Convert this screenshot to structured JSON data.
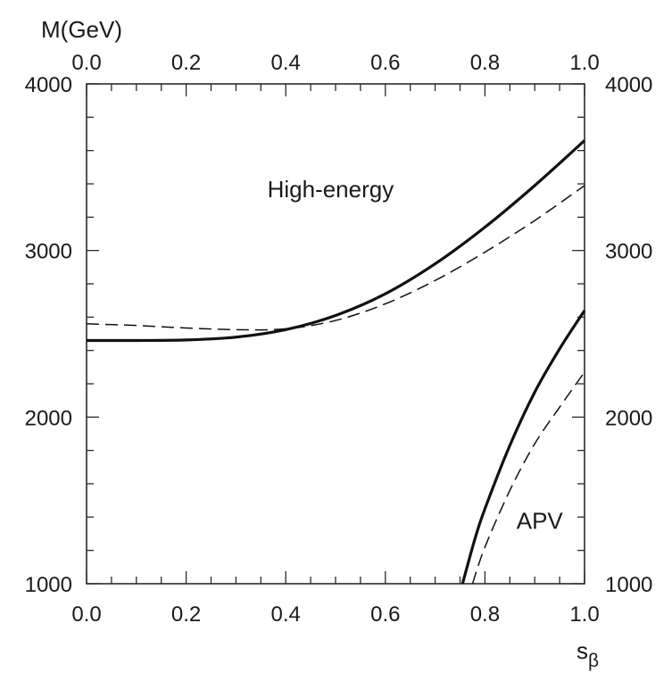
{
  "chart_data": {
    "type": "line",
    "ylabel": "M(GeV)",
    "xlabel": "s",
    "xlabel_subscript": "β",
    "xlim": [
      0.0,
      1.0
    ],
    "ylim": [
      1000,
      4000
    ],
    "x_ticks": [
      "0.0",
      "0.2",
      "0.4",
      "0.6",
      "0.8",
      "1.0"
    ],
    "y_ticks": [
      "1000",
      "2000",
      "3000",
      "4000"
    ],
    "grid": false,
    "annotations": [
      {
        "text": "High-energy",
        "x": 0.49,
        "y": 3320
      },
      {
        "text": "APV",
        "x": 0.91,
        "y": 1330
      }
    ],
    "series": [
      {
        "style": "solid",
        "points": [
          [
            0.0,
            2460
          ],
          [
            0.1,
            2460
          ],
          [
            0.2,
            2463
          ],
          [
            0.3,
            2480
          ],
          [
            0.4,
            2525
          ],
          [
            0.5,
            2610
          ],
          [
            0.6,
            2740
          ],
          [
            0.7,
            2920
          ],
          [
            0.8,
            3140
          ],
          [
            0.9,
            3390
          ],
          [
            1.0,
            3660
          ]
        ]
      },
      {
        "style": "dashed",
        "points": [
          [
            0.0,
            2560
          ],
          [
            0.1,
            2550
          ],
          [
            0.2,
            2535
          ],
          [
            0.3,
            2525
          ],
          [
            0.4,
            2530
          ],
          [
            0.5,
            2580
          ],
          [
            0.6,
            2680
          ],
          [
            0.7,
            2820
          ],
          [
            0.8,
            2990
          ],
          [
            0.9,
            3180
          ],
          [
            1.0,
            3390
          ]
        ]
      },
      {
        "style": "solid",
        "points": [
          [
            0.755,
            1000
          ],
          [
            0.78,
            1270
          ],
          [
            0.8,
            1450
          ],
          [
            0.85,
            1830
          ],
          [
            0.9,
            2150
          ],
          [
            0.95,
            2410
          ],
          [
            1.0,
            2640
          ]
        ]
      },
      {
        "style": "dashed",
        "points": [
          [
            0.775,
            1000
          ],
          [
            0.8,
            1220
          ],
          [
            0.85,
            1560
          ],
          [
            0.9,
            1840
          ],
          [
            0.95,
            2060
          ],
          [
            1.0,
            2270
          ]
        ]
      }
    ]
  }
}
